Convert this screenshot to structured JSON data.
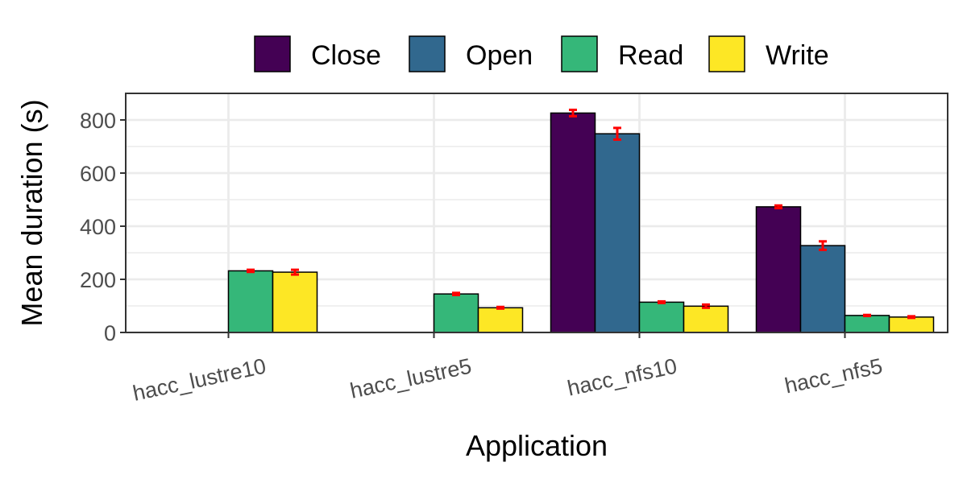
{
  "chart_data": {
    "type": "bar",
    "xlabel": "Application",
    "ylabel": "Mean duration (s)",
    "categories": [
      "hacc_lustre10",
      "hacc_lustre5",
      "hacc_nfs10",
      "hacc_nfs5"
    ],
    "ylim": [
      0,
      900
    ],
    "yticks": [
      0,
      200,
      400,
      600,
      800
    ],
    "grid": true,
    "legend_position": "top",
    "error_bar_color": "#ff0000",
    "series": [
      {
        "name": "Close",
        "color": "#440154",
        "values": [
          null,
          null,
          826,
          473
        ],
        "errors": [
          null,
          null,
          12,
          5
        ]
      },
      {
        "name": "Open",
        "color": "#31688e",
        "values": [
          null,
          null,
          748,
          327
        ],
        "errors": [
          null,
          null,
          22,
          16
        ]
      },
      {
        "name": "Read",
        "color": "#35b779",
        "values": [
          232,
          145,
          114,
          64
        ],
        "errors": [
          4,
          4,
          3,
          2
        ]
      },
      {
        "name": "Write",
        "color": "#fde725",
        "values": [
          227,
          93,
          99,
          58
        ],
        "errors": [
          9,
          3,
          6,
          3
        ]
      }
    ]
  }
}
